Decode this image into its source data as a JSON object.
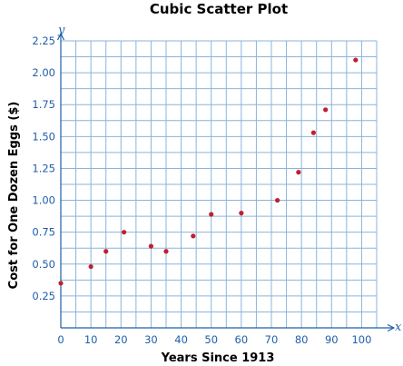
{
  "chart_data": {
    "type": "scatter",
    "title": "Cubic Scatter Plot",
    "xlabel": "Years Since 1913",
    "ylabel": "Cost for One Dozen Eggs ($)",
    "x_axis_letter": "x",
    "y_axis_letter": "y",
    "xlim": [
      0,
      105
    ],
    "ylim": [
      0,
      2.25
    ],
    "x_ticks": [
      0,
      10,
      20,
      30,
      40,
      50,
      60,
      70,
      80,
      90,
      100
    ],
    "x_tick_labels": [
      "0",
      "10",
      "20",
      "30",
      "40",
      "50",
      "60",
      "70",
      "80",
      "90",
      "100"
    ],
    "y_ticks": [
      0.25,
      0.5,
      0.75,
      1.0,
      1.25,
      1.5,
      1.75,
      2.0,
      2.25
    ],
    "y_tick_labels": [
      "0.25",
      "0.50",
      "0.75",
      "1.00",
      "1.25",
      "1.50",
      "1.75",
      "2.00",
      "2.25"
    ],
    "grid": true,
    "x_minor_step": 5,
    "y_minor_step": 0.125,
    "point_color": "#c0202a",
    "axis_color": "#1f5fa8",
    "grid_color": "#8ab4dc",
    "points": [
      {
        "x": 0,
        "y": 0.35
      },
      {
        "x": 10,
        "y": 0.48
      },
      {
        "x": 15,
        "y": 0.6
      },
      {
        "x": 21,
        "y": 0.75
      },
      {
        "x": 30,
        "y": 0.64
      },
      {
        "x": 35,
        "y": 0.6
      },
      {
        "x": 44,
        "y": 0.72
      },
      {
        "x": 50,
        "y": 0.89
      },
      {
        "x": 60,
        "y": 0.9
      },
      {
        "x": 72,
        "y": 1.0
      },
      {
        "x": 79,
        "y": 1.22
      },
      {
        "x": 84,
        "y": 1.53
      },
      {
        "x": 88,
        "y": 1.71
      },
      {
        "x": 98,
        "y": 2.1
      }
    ]
  }
}
